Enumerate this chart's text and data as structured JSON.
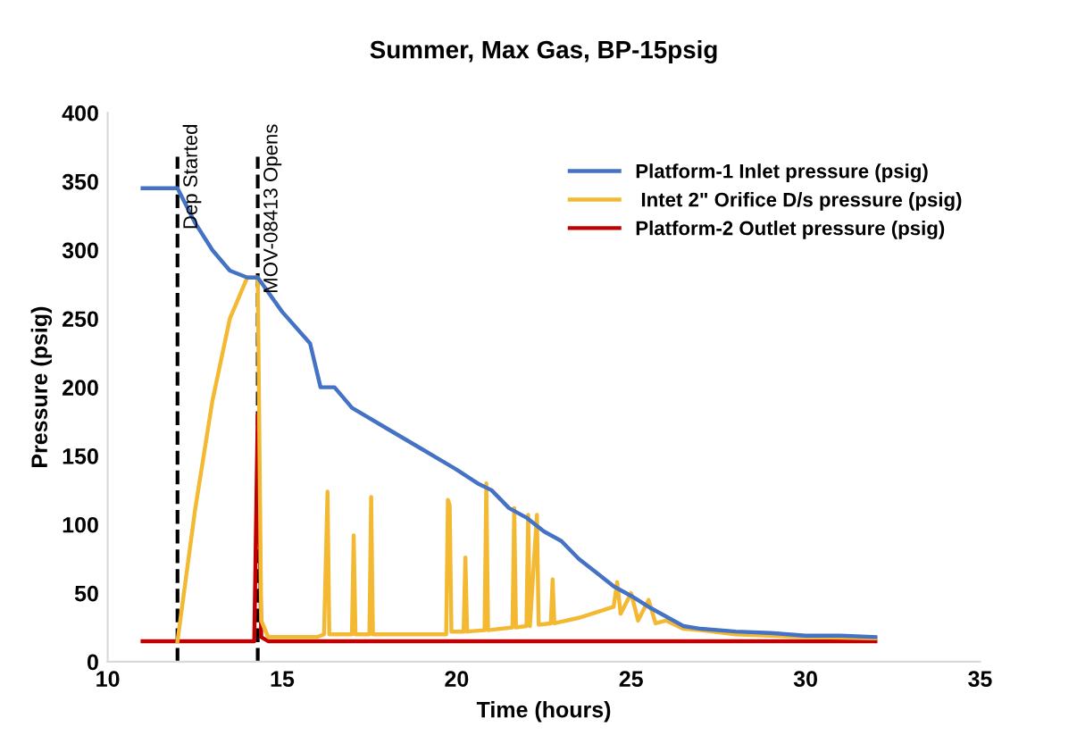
{
  "chart_data": {
    "type": "line",
    "title": "Summer, Max Gas, BP-15psig",
    "xlabel": "Time (hours)",
    "ylabel": "Pressure (psig)",
    "xlim": [
      10,
      35
    ],
    "xticks": [
      10,
      15,
      20,
      25,
      30,
      35
    ],
    "ylim": [
      0,
      400
    ],
    "yticks": [
      0,
      50,
      100,
      150,
      200,
      250,
      300,
      350,
      400
    ],
    "grid": false,
    "legend": "top right",
    "marker": "none",
    "line_style": "solid",
    "series": [
      {
        "name": "Platform-1 Inlet pressure (psig)",
        "color": "#4472c4",
        "x": [
          11,
          12,
          12.5,
          13,
          13.5,
          14,
          14.3,
          15,
          15.8,
          16.1,
          16.5,
          17,
          18,
          19,
          20,
          20.6,
          21,
          21.5,
          22,
          22.5,
          23,
          23.5,
          24,
          24.5,
          25,
          25.5,
          26,
          26.5,
          27,
          28,
          29,
          30,
          31,
          32
        ],
        "values": [
          345,
          345,
          320,
          300,
          285,
          280,
          280,
          255,
          232,
          200,
          200,
          185,
          170,
          155,
          140,
          130,
          125,
          112,
          105,
          95,
          88,
          75,
          65,
          55,
          48,
          40,
          33,
          26,
          24,
          22,
          21,
          19,
          19,
          18
        ]
      },
      {
        "name": " Intet 2\" Orifice D/s pressure (psig)",
        "color": "#f4b932",
        "x": [
          12,
          12.5,
          13,
          13.5,
          14,
          14.3,
          14.4,
          14.6,
          16,
          16.2,
          16.3,
          16.35,
          17,
          17.05,
          17.1,
          17.5,
          17.55,
          17.6,
          19.7,
          19.75,
          19.8,
          19.85,
          20.2,
          20.25,
          20.3,
          20.8,
          20.85,
          20.9,
          21.6,
          21.65,
          21.7,
          22,
          22.05,
          22.1,
          22.3,
          22.35,
          22.7,
          22.75,
          22.8,
          23.5,
          24.5,
          24.6,
          24.7,
          25,
          25.2,
          25.5,
          25.7,
          26,
          26.5,
          27,
          28,
          30,
          32
        ],
        "values": [
          15,
          110,
          190,
          250,
          280,
          280,
          30,
          18,
          18,
          20,
          124,
          20,
          20,
          92,
          20,
          20,
          120,
          20,
          20,
          118,
          114,
          22,
          22,
          76,
          22,
          23,
          130,
          23,
          25,
          112,
          25,
          26,
          107,
          26,
          107,
          27,
          28,
          60,
          28,
          32,
          40,
          58,
          35,
          50,
          30,
          45,
          28,
          30,
          24,
          23,
          20,
          18,
          17
        ]
      },
      {
        "name": "Platform-2 Outlet pressure (psig)",
        "color": "#c00000",
        "x": [
          11,
          14.2,
          14.3,
          14.4,
          14.6,
          32
        ],
        "values": [
          15,
          15,
          180,
          18,
          15,
          15
        ]
      }
    ],
    "ref_lines": [
      {
        "axis": "x",
        "value": 12,
        "label": "Dep Started",
        "color": "#000000",
        "line_style": "dashed"
      },
      {
        "axis": "x",
        "value": 14.3,
        "label": "MOV-08413 Opens",
        "color": "#000000",
        "line_style": "dashed"
      }
    ]
  }
}
